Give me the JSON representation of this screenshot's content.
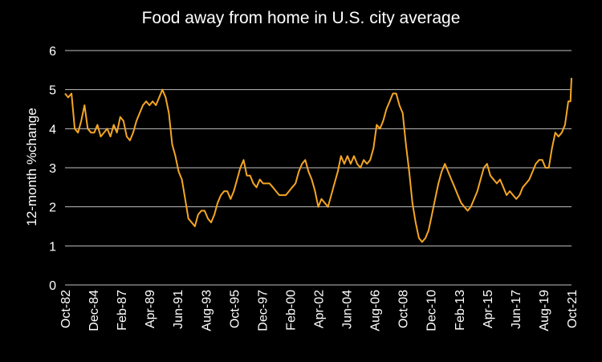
{
  "chart_data": {
    "type": "line",
    "title": "Food away from home in U.S. city average",
    "xlabel": "",
    "ylabel": "12-month %change",
    "ylim": [
      0,
      6
    ],
    "yticks": [
      "0",
      "1",
      "2",
      "3",
      "4",
      "5",
      "6"
    ],
    "xtick_labels": [
      "Oct-82",
      "Dec-84",
      "Feb-87",
      "Apr-89",
      "Jun-91",
      "Aug-93",
      "Oct-95",
      "Dec-97",
      "Feb-00",
      "Apr-02",
      "Jun-04",
      "Aug-06",
      "Oct-08",
      "Dec-10",
      "Feb-13",
      "Apr-15",
      "Jun-17",
      "Aug-19",
      "Oct-21"
    ],
    "x_start": "1982-10",
    "x_end": "2021-10",
    "grid": true,
    "line_color": "#f5a623",
    "series": [
      {
        "name": "",
        "points": [
          [
            "1982-10",
            4.9
          ],
          [
            "1983-01",
            4.8
          ],
          [
            "1983-04",
            4.9
          ],
          [
            "1983-07",
            4.0
          ],
          [
            "1983-10",
            3.9
          ],
          [
            "1984-01",
            4.2
          ],
          [
            "1984-04",
            4.6
          ],
          [
            "1984-07",
            4.0
          ],
          [
            "1984-10",
            3.9
          ],
          [
            "1985-01",
            3.9
          ],
          [
            "1985-04",
            4.1
          ],
          [
            "1985-07",
            3.8
          ],
          [
            "1986-01",
            4.0
          ],
          [
            "1986-04",
            3.8
          ],
          [
            "1986-07",
            4.1
          ],
          [
            "1986-10",
            3.9
          ],
          [
            "1987-01",
            4.3
          ],
          [
            "1987-04",
            4.2
          ],
          [
            "1987-07",
            3.8
          ],
          [
            "1987-10",
            3.7
          ],
          [
            "1988-01",
            3.9
          ],
          [
            "1988-04",
            4.2
          ],
          [
            "1988-07",
            4.4
          ],
          [
            "1988-10",
            4.6
          ],
          [
            "1989-01",
            4.7
          ],
          [
            "1989-04",
            4.6
          ],
          [
            "1989-07",
            4.7
          ],
          [
            "1989-10",
            4.6
          ],
          [
            "1990-01",
            4.8
          ],
          [
            "1990-04",
            5.0
          ],
          [
            "1990-07",
            4.8
          ],
          [
            "1990-10",
            4.4
          ],
          [
            "1991-01",
            3.6
          ],
          [
            "1991-04",
            3.3
          ],
          [
            "1991-07",
            2.9
          ],
          [
            "1991-10",
            2.7
          ],
          [
            "1992-01",
            2.2
          ],
          [
            "1992-04",
            1.7
          ],
          [
            "1992-07",
            1.6
          ],
          [
            "1992-10",
            1.5
          ],
          [
            "1993-01",
            1.8
          ],
          [
            "1993-04",
            1.9
          ],
          [
            "1993-07",
            1.9
          ],
          [
            "1993-10",
            1.7
          ],
          [
            "1994-01",
            1.6
          ],
          [
            "1994-04",
            1.8
          ],
          [
            "1994-07",
            2.1
          ],
          [
            "1994-10",
            2.3
          ],
          [
            "1995-01",
            2.4
          ],
          [
            "1995-04",
            2.4
          ],
          [
            "1995-07",
            2.2
          ],
          [
            "1995-10",
            2.4
          ],
          [
            "1996-01",
            2.7
          ],
          [
            "1996-04",
            3.0
          ],
          [
            "1996-07",
            3.2
          ],
          [
            "1996-10",
            2.8
          ],
          [
            "1997-01",
            2.8
          ],
          [
            "1997-04",
            2.6
          ],
          [
            "1997-07",
            2.5
          ],
          [
            "1997-10",
            2.7
          ],
          [
            "1998-01",
            2.6
          ],
          [
            "1998-04",
            2.6
          ],
          [
            "1998-07",
            2.6
          ],
          [
            "1998-10",
            2.5
          ],
          [
            "1999-01",
            2.4
          ],
          [
            "1999-04",
            2.3
          ],
          [
            "1999-07",
            2.3
          ],
          [
            "1999-10",
            2.3
          ],
          [
            "2000-01",
            2.4
          ],
          [
            "2000-04",
            2.5
          ],
          [
            "2000-07",
            2.6
          ],
          [
            "2000-10",
            2.9
          ],
          [
            "2001-01",
            3.1
          ],
          [
            "2001-04",
            3.2
          ],
          [
            "2001-07",
            2.9
          ],
          [
            "2001-10",
            2.7
          ],
          [
            "2002-01",
            2.4
          ],
          [
            "2002-04",
            2.0
          ],
          [
            "2002-07",
            2.2
          ],
          [
            "2002-10",
            2.1
          ],
          [
            "2003-01",
            2.0
          ],
          [
            "2003-04",
            2.3
          ],
          [
            "2003-07",
            2.6
          ],
          [
            "2003-10",
            2.9
          ],
          [
            "2004-01",
            3.3
          ],
          [
            "2004-04",
            3.1
          ],
          [
            "2004-07",
            3.3
          ],
          [
            "2004-10",
            3.1
          ],
          [
            "2005-01",
            3.3
          ],
          [
            "2005-04",
            3.1
          ],
          [
            "2005-07",
            3.0
          ],
          [
            "2005-10",
            3.2
          ],
          [
            "2006-01",
            3.1
          ],
          [
            "2006-04",
            3.2
          ],
          [
            "2006-07",
            3.5
          ],
          [
            "2006-10",
            4.1
          ],
          [
            "2007-01",
            4.0
          ],
          [
            "2007-04",
            4.2
          ],
          [
            "2007-07",
            4.5
          ],
          [
            "2007-10",
            4.7
          ],
          [
            "2008-01",
            4.9
          ],
          [
            "2008-04",
            4.9
          ],
          [
            "2008-07",
            4.6
          ],
          [
            "2008-10",
            4.4
          ],
          [
            "2009-01",
            3.6
          ],
          [
            "2009-04",
            2.9
          ],
          [
            "2009-07",
            2.1
          ],
          [
            "2009-10",
            1.6
          ],
          [
            "2010-01",
            1.2
          ],
          [
            "2010-04",
            1.1
          ],
          [
            "2010-07",
            1.2
          ],
          [
            "2010-10",
            1.4
          ],
          [
            "2011-01",
            1.8
          ],
          [
            "2011-04",
            2.2
          ],
          [
            "2011-07",
            2.6
          ],
          [
            "2011-10",
            2.9
          ],
          [
            "2012-01",
            3.1
          ],
          [
            "2012-04",
            2.9
          ],
          [
            "2012-07",
            2.7
          ],
          [
            "2012-10",
            2.5
          ],
          [
            "2013-01",
            2.3
          ],
          [
            "2013-04",
            2.1
          ],
          [
            "2013-07",
            2.0
          ],
          [
            "2013-10",
            1.9
          ],
          [
            "2014-01",
            2.0
          ],
          [
            "2014-04",
            2.2
          ],
          [
            "2014-07",
            2.4
          ],
          [
            "2014-10",
            2.7
          ],
          [
            "2015-01",
            3.0
          ],
          [
            "2015-04",
            3.1
          ],
          [
            "2015-07",
            2.8
          ],
          [
            "2015-10",
            2.7
          ],
          [
            "2016-01",
            2.6
          ],
          [
            "2016-04",
            2.7
          ],
          [
            "2016-07",
            2.5
          ],
          [
            "2016-10",
            2.3
          ],
          [
            "2017-01",
            2.4
          ],
          [
            "2017-04",
            2.3
          ],
          [
            "2017-07",
            2.2
          ],
          [
            "2017-10",
            2.3
          ],
          [
            "2018-01",
            2.5
          ],
          [
            "2018-04",
            2.6
          ],
          [
            "2018-07",
            2.7
          ],
          [
            "2018-10",
            2.9
          ],
          [
            "2019-01",
            3.1
          ],
          [
            "2019-04",
            3.2
          ],
          [
            "2019-07",
            3.2
          ],
          [
            "2019-10",
            3.0
          ],
          [
            "2020-01",
            3.0
          ],
          [
            "2020-04",
            3.5
          ],
          [
            "2020-07",
            3.9
          ],
          [
            "2020-10",
            3.8
          ],
          [
            "2021-01",
            3.9
          ],
          [
            "2021-04",
            4.1
          ],
          [
            "2021-07",
            4.7
          ],
          [
            "2021-09",
            4.7
          ],
          [
            "2021-10",
            5.3
          ]
        ]
      }
    ]
  }
}
